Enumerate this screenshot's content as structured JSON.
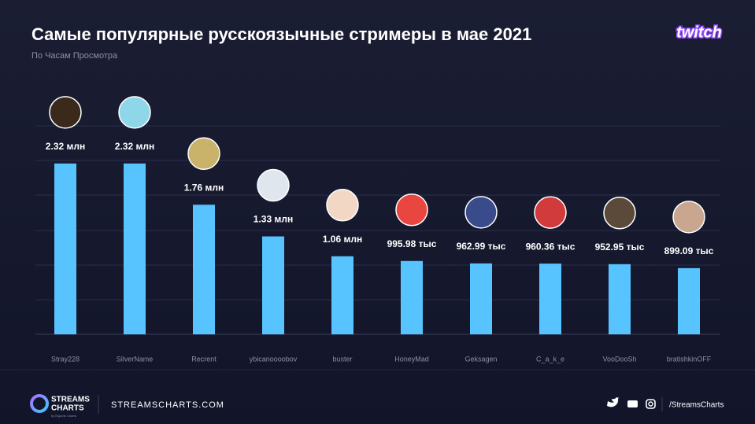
{
  "header": {
    "title": "Самые популярные русскоязычные стримеры в мае 2021",
    "subtitle": "По Часам Просмотра",
    "brand": "twitch"
  },
  "chart_data": {
    "type": "bar",
    "categories": [
      "Stray228",
      "SilverName",
      "Recrent",
      "ybicanoooobov",
      "buster",
      "HoneyMad",
      "Geksagen",
      "C_a_k_e",
      "VooDooSh",
      "bratishkinOFF"
    ],
    "values": [
      2320000,
      2320000,
      1760000,
      1330000,
      1060000,
      995980,
      962990,
      960360,
      952950,
      899090
    ],
    "value_labels": [
      "2.32 млн",
      "2.32 млн",
      "1.76 млн",
      "1.33 млн",
      "1.06 млн",
      "995.98 тыс",
      "962.99 тыс",
      "960.36 тыс",
      "952.95 тыс",
      "899.09 тыс"
    ],
    "color": "#58c4ff",
    "ylim": [
      0,
      2500000
    ]
  },
  "footer": {
    "logo_line1": "STREAMS",
    "logo_line2": "CHARTS",
    "logo_sub": "by Esports Charts",
    "site": "STREAMSCHARTS.COM",
    "handle": "/StreamsCharts"
  }
}
